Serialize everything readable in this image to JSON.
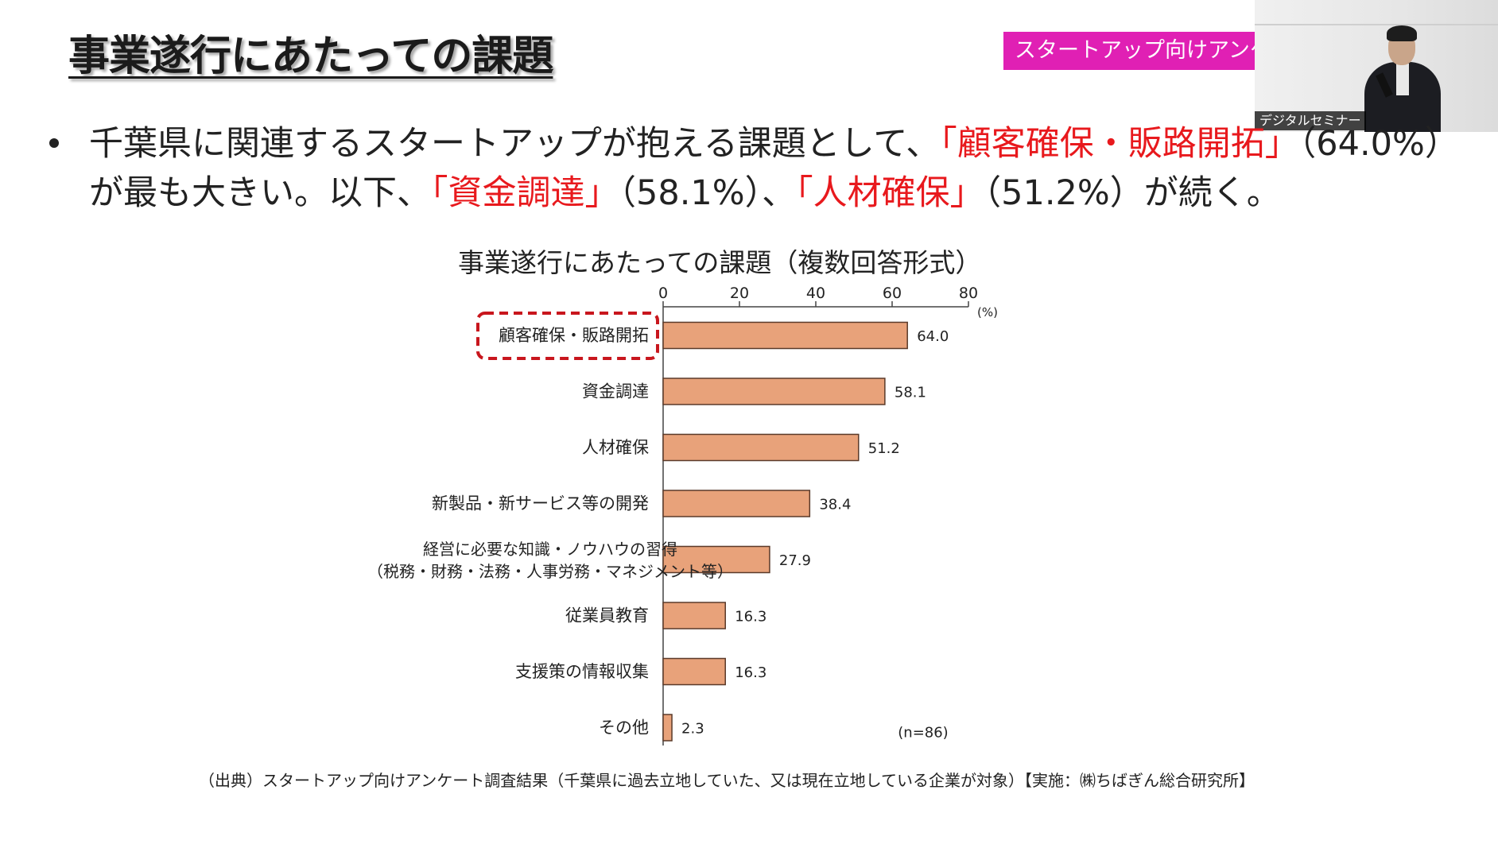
{
  "slide": {
    "title": "事業遂行にあたっての課題",
    "tag": "スタートアップ向けアンケート",
    "bullet": {
      "line1_prefix": "千葉県に関連するスタートアップが抱える課題として、",
      "line1_red": "「顧客確保・販路開拓」",
      "line1_suffix": "（64.0%）",
      "line2_prefix": "が最も大きい。以下、",
      "line2_red1": "「資金調達」",
      "line2_mid": "（58.1%）、",
      "line2_red2": "「人材確保」",
      "line2_suffix": "（51.2%）が続く。"
    },
    "source": "（出典）スタートアップ向けアンケート調査結果（千葉県に過去立地していた、又は現在立地している企業が対象）【実施：㈱ちばぎん総合研究所】"
  },
  "video": {
    "name_label": "デジタルセミナー"
  },
  "colors": {
    "bar_fill": "#e8a27a",
    "bar_stroke": "#5a3a2a",
    "highlight": "#c8161d",
    "tag_bg": "#e020b4",
    "emphasis_text": "#e8191d"
  },
  "chart_data": {
    "type": "bar",
    "orientation": "horizontal",
    "title": "事業遂行にあたっての課題（複数回答形式）",
    "xlim": [
      0,
      80
    ],
    "x_ticks": [
      "0",
      "20",
      "40",
      "60",
      "80"
    ],
    "unit_label": "(%)",
    "note": "(n=86)",
    "categories": [
      [
        "顧客確保・販路開拓"
      ],
      [
        "資金調達"
      ],
      [
        "人材確保"
      ],
      [
        "新製品・新サービス等の開発"
      ],
      [
        "経営に必要な知識・ノウハウの習得",
        "（税務・財務・法務・人事労務・マネジメント等）"
      ],
      [
        "従業員教育"
      ],
      [
        "支援策の情報収集"
      ],
      [
        "その他"
      ]
    ],
    "values": [
      64.0,
      58.1,
      51.2,
      38.4,
      27.9,
      16.3,
      16.3,
      2.3
    ],
    "value_labels": [
      "64.0",
      "58.1",
      "51.2",
      "38.4",
      "27.9",
      "16.3",
      "16.3",
      "2.3"
    ],
    "highlighted_category_index": 0,
    "grid": false,
    "legend": "none"
  }
}
